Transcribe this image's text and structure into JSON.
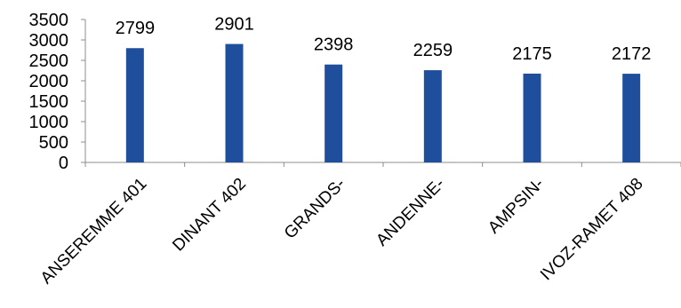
{
  "chart_data": {
    "type": "bar",
    "title": "",
    "xlabel": "",
    "ylabel": "",
    "categories": [
      "ANSEREMME 401",
      "DINANT 402",
      "GRANDS-",
      "ANDENNE-",
      "AMPSIN-",
      "IVOZ-RAMET 408"
    ],
    "values": [
      2799,
      2901,
      2398,
      2259,
      2175,
      2172
    ],
    "data_labels": [
      "2799",
      "2901",
      "2398",
      "2259",
      "2175",
      "2172"
    ],
    "yticks": [
      "0",
      "500",
      "1000",
      "1500",
      "2000",
      "2500",
      "3000",
      "3500"
    ],
    "ylim": [
      0,
      3500
    ],
    "grid": false,
    "legend": "none",
    "bar_color": "#1f4e9c"
  }
}
